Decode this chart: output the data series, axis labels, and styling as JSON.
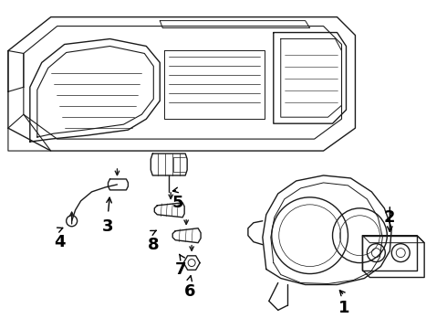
{
  "background_color": "#ffffff",
  "line_color": "#1a1a1a",
  "line_width": 1.0,
  "fig_width": 4.9,
  "fig_height": 3.6,
  "dpi": 100
}
